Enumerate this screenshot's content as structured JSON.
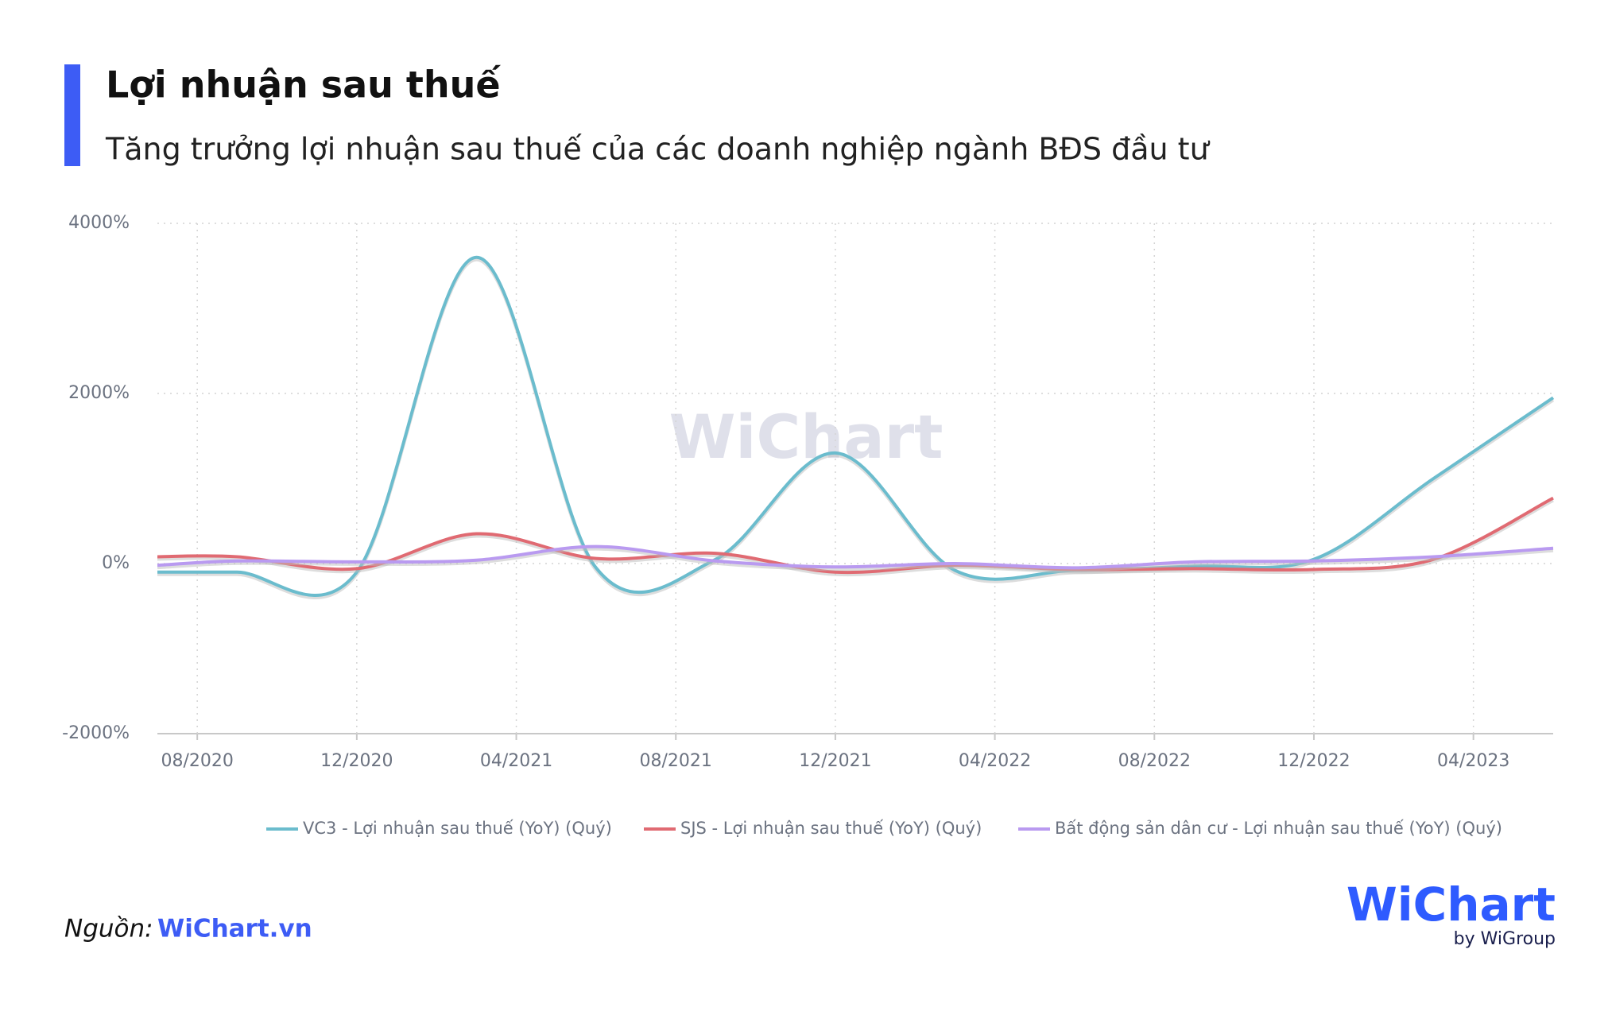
{
  "chart_data": {
    "type": "line",
    "title": "Lợi nhuận sau thuế",
    "subtitle": "Tăng trưởng lợi nhuận sau thuế của các doanh nghiệp ngành BĐS đầu tư",
    "x": [
      "07/2020",
      "09/2020",
      "12/2020",
      "03/2021",
      "06/2021",
      "09/2021",
      "12/2021",
      "03/2022",
      "06/2022",
      "09/2022",
      "12/2022",
      "03/2023",
      "06/2023"
    ],
    "xlim": [
      "07/2020",
      "06/2023"
    ],
    "xticks": [
      "08/2020",
      "12/2020",
      "04/2021",
      "08/2021",
      "12/2021",
      "04/2022",
      "08/2022",
      "12/2022",
      "04/2023"
    ],
    "ylim": [
      -2000,
      4000
    ],
    "yticks": [
      {
        "value": -2000,
        "label": "-2000%"
      },
      {
        "value": 0,
        "label": "0%"
      },
      {
        "value": 2000,
        "label": "2000%"
      },
      {
        "value": 4000,
        "label": "4000%"
      }
    ],
    "grid": true,
    "series": [
      {
        "name": "VC3 - Lợi nhuận sau thuế (YoY) (Quý)",
        "color": "#6bbccd",
        "values": [
          -100,
          -100,
          -100,
          3600,
          -50,
          50,
          1300,
          -80,
          -80,
          -30,
          50,
          1000,
          1950
        ]
      },
      {
        "name": "SJS - Lợi nhuận sau thuế (YoY) (Quý)",
        "color": "#e06a72",
        "values": [
          80,
          80,
          -60,
          350,
          60,
          120,
          -100,
          -20,
          -70,
          -60,
          -70,
          50,
          770
        ]
      },
      {
        "name": "Bất động sản dân cư - Lợi nhuận sau thuế (YoY) (Quý)",
        "color": "#b99af0",
        "values": [
          -20,
          30,
          20,
          40,
          200,
          30,
          -40,
          0,
          -50,
          20,
          30,
          80,
          180
        ]
      }
    ],
    "watermark": "WiChart",
    "source_label": "Nguồn:",
    "source": "WiChart.vn",
    "logo": "WiChart",
    "logo_sub": "by WiGroup"
  }
}
